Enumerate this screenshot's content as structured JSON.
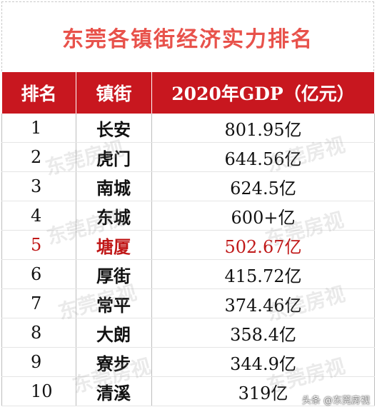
{
  "title": "东莞各镇街经济实力排名",
  "headers": {
    "rank": "排名",
    "town": "镇街",
    "gdp": "2020年GDP（亿元）"
  },
  "rows": [
    {
      "rank": "1",
      "town": "长安",
      "gdp": "801.95亿"
    },
    {
      "rank": "2",
      "town": "虎门",
      "gdp": "644.56亿"
    },
    {
      "rank": "3",
      "town": "南城",
      "gdp": "624.5亿"
    },
    {
      "rank": "4",
      "town": "东城",
      "gdp": "600+亿"
    },
    {
      "rank": "5",
      "town": "塘厦",
      "gdp": "502.67亿"
    },
    {
      "rank": "6",
      "town": "厚街",
      "gdp": "415.72亿"
    },
    {
      "rank": "7",
      "town": "常平",
      "gdp": "374.46亿"
    },
    {
      "rank": "8",
      "town": "大朗",
      "gdp": "358.4亿"
    },
    {
      "rank": "9",
      "town": "寮步",
      "gdp": "344.9亿"
    },
    {
      "rank": "10",
      "town": "清溪",
      "gdp": "319亿"
    }
  ],
  "highlight_color": "#c01818",
  "header_color": "#c8171f",
  "title_color": "#e8524b",
  "watermark": "东莞房视",
  "credit": "头条 @东莞房视"
}
